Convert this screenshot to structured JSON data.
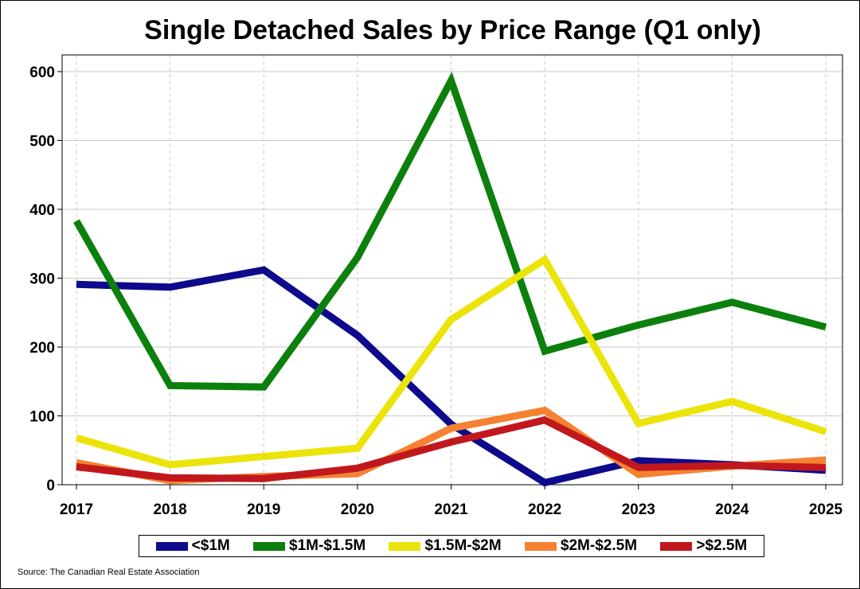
{
  "title": "Single Detached Sales by Price Range (Q1 only)",
  "source": "Source: The Canadian Real Estate Association",
  "chart_data": {
    "type": "line",
    "title": "Single Detached Sales by Price Range (Q1 only)",
    "xlabel": "",
    "ylabel": "",
    "x": [
      "2017",
      "2018",
      "2019",
      "2020",
      "2021",
      "2022",
      "2023",
      "2024",
      "2025"
    ],
    "ylim": [
      0,
      620
    ],
    "yticks": [
      0,
      100,
      200,
      300,
      400,
      500,
      600
    ],
    "grid": "horizontal solid, vertical dashed",
    "legend_position": "bottom",
    "series": [
      {
        "name": "<$1M",
        "color": "#0d0a8c",
        "values": [
          291,
          287,
          312,
          217,
          88,
          3,
          35,
          29,
          21
        ]
      },
      {
        "name": "$1M-$1.5M",
        "color": "#0c800c",
        "values": [
          383,
          144,
          142,
          330,
          587,
          194,
          232,
          265,
          229
        ]
      },
      {
        "name": "$1.5M-$2M",
        "color": "#ebe40a",
        "values": [
          68,
          29,
          41,
          53,
          240,
          327,
          89,
          121,
          77
        ]
      },
      {
        "name": "$2M-$2.5M",
        "color": "#f58230",
        "values": [
          32,
          6,
          12,
          16,
          82,
          108,
          15,
          27,
          36
        ]
      },
      {
        "name": ">$2.5M",
        "color": "#c1181d",
        "values": [
          26,
          10,
          9,
          24,
          62,
          94,
          25,
          28,
          25
        ]
      }
    ]
  }
}
